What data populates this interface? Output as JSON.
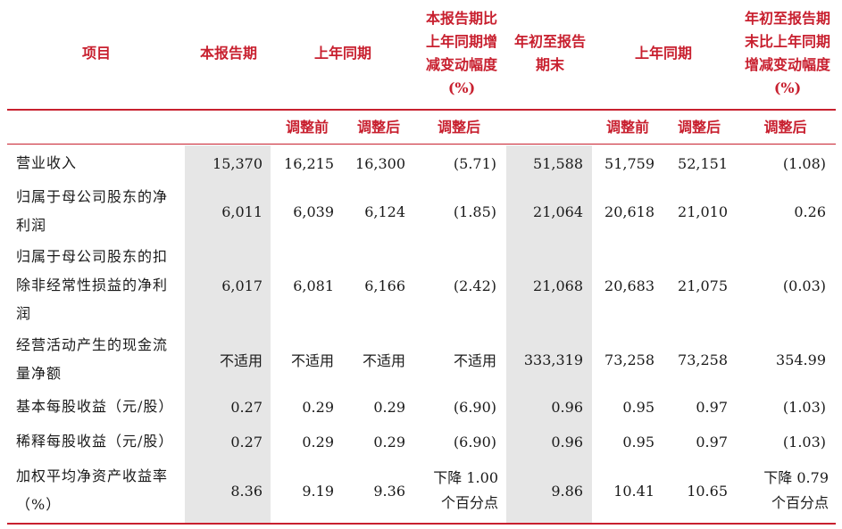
{
  "header": {
    "item": "项目",
    "current_period": "本报告期",
    "prior_period": "上年同期",
    "current_change": "本报告期比上年同期增减变动幅度(%)",
    "ytd": "年初至报告期末",
    "ytd_prior_period": "上年同期",
    "ytd_change": "年初至报告期末比上年同期增减变动幅度(%)"
  },
  "subheader": {
    "prior_before": "调整前",
    "prior_after": "调整后",
    "change_after": "调整后",
    "ytd_prior_before": "调整前",
    "ytd_prior_after": "调整后",
    "ytd_change_after": "调整后"
  },
  "rows": [
    {
      "item": "营业收入",
      "cur": "15,370",
      "pb": "16,215",
      "pa": "16,300",
      "chg": "(5.71)",
      "ytd": "51,588",
      "ypb": "51,759",
      "ypa": "52,151",
      "ychg": "(1.08)"
    },
    {
      "item": "归属于母公司股东的净利润",
      "cur": "6,011",
      "pb": "6,039",
      "pa": "6,124",
      "chg": "(1.85)",
      "ytd": "21,064",
      "ypb": "20,618",
      "ypa": "21,010",
      "ychg": "0.26"
    },
    {
      "item": "归属于母公司股东的扣除非经常性损益的净利润",
      "cur": "6,017",
      "pb": "6,081",
      "pa": "6,166",
      "chg": "(2.42)",
      "ytd": "21,068",
      "ypb": "20,683",
      "ypa": "21,075",
      "ychg": "(0.03)"
    },
    {
      "item": "经营活动产生的现金流量净额",
      "cur": "不适用",
      "pb": "不适用",
      "pa": "不适用",
      "chg": "不适用",
      "ytd": "333,319",
      "ypb": "73,258",
      "ypa": "73,258",
      "ychg": "354.99"
    },
    {
      "item": "基本每股收益（元/股）",
      "cur": "0.27",
      "pb": "0.29",
      "pa": "0.29",
      "chg": "(6.90)",
      "ytd": "0.96",
      "ypb": "0.95",
      "ypa": "0.97",
      "ychg": "(1.03)"
    },
    {
      "item": "稀释每股收益（元/股）",
      "cur": "0.27",
      "pb": "0.29",
      "pa": "0.29",
      "chg": "(6.90)",
      "ytd": "0.96",
      "ypb": "0.95",
      "ypa": "0.97",
      "ychg": "(1.03)"
    },
    {
      "item": "加权平均净资产收益率（%）",
      "cur": "8.36",
      "pb": "9.19",
      "pa": "9.36",
      "chg": "下降 1.00 个百分点",
      "ytd": "9.86",
      "ypb": "10.41",
      "ypa": "10.65",
      "ychg": "下降 0.79 个百分点"
    }
  ],
  "colors": {
    "header_text": "#c8202f",
    "rule": "#c8202f",
    "shade": "#e6e6e6"
  }
}
